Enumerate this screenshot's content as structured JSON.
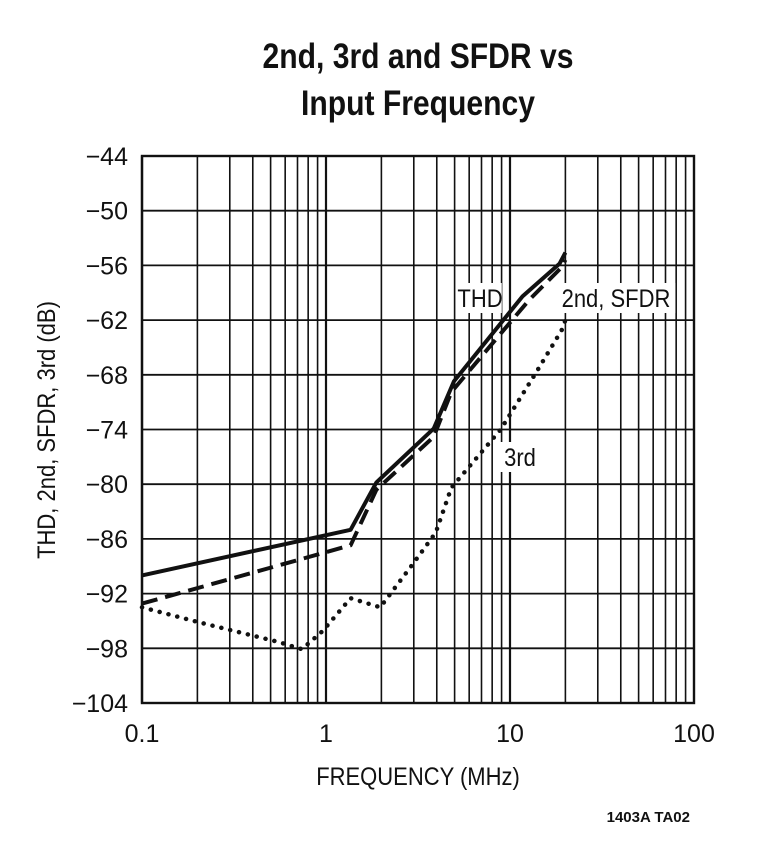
{
  "chart_data": {
    "type": "line",
    "title_line1": "2nd, 3rd and SFDR vs",
    "title_line2": "Input Frequency",
    "xlabel": "FREQUENCY (MHz)",
    "ylabel": "THD, 2nd, SFDR, 3rd (dB)",
    "x_scale": "log",
    "xlim": [
      0.1,
      100
    ],
    "ylim": [
      -104,
      -44
    ],
    "x_ticks": [
      "0.1",
      "1",
      "10",
      "100"
    ],
    "x_tick_values": [
      0.1,
      1,
      10,
      100
    ],
    "y_ticks": [
      "−44",
      "−50",
      "−56",
      "−62",
      "−68",
      "−74",
      "−80",
      "−86",
      "−92",
      "−98",
      "−104"
    ],
    "y_tick_values": [
      -44,
      -50,
      -56,
      -62,
      -68,
      -74,
      -80,
      -86,
      -92,
      -98,
      -104
    ],
    "grid": true,
    "series": [
      {
        "name": "THD",
        "style": "solid",
        "x": [
          0.1,
          1.36,
          1.88,
          3.85,
          4.96,
          11.7,
          18.6,
          20
        ],
        "y": [
          -90,
          -85,
          -79.8,
          -73.9,
          -68.7,
          -59.4,
          -55.8,
          -54.6
        ]
      },
      {
        "name": "2nd, SFDR",
        "style": "dashed",
        "x": [
          0.1,
          1.36,
          1.88,
          3.85,
          4.8,
          12.7,
          19.1,
          20
        ],
        "y": [
          -93.1,
          -86.7,
          -80.6,
          -74.8,
          -69.9,
          -59.8,
          -56.2,
          -55.4
        ]
      },
      {
        "name": "3rd",
        "style": "dotted",
        "x": [
          0.1,
          0.2,
          0.55,
          0.74,
          0.96,
          1.36,
          1.97,
          2.93,
          3.95,
          4.8,
          8.9,
          14.1,
          19.1,
          20
        ],
        "y": [
          -93.5,
          -95.1,
          -97.3,
          -98.1,
          -96.1,
          -92.5,
          -93.5,
          -88.9,
          -85.3,
          -80.4,
          -74,
          -67.5,
          -63.1,
          -62
        ]
      }
    ],
    "annotations": [
      "THD",
      "2nd, SFDR",
      "3rd"
    ]
  },
  "footer_code": "1403A TA02",
  "colors": {
    "ink": "#111111",
    "background": "#ffffff"
  }
}
